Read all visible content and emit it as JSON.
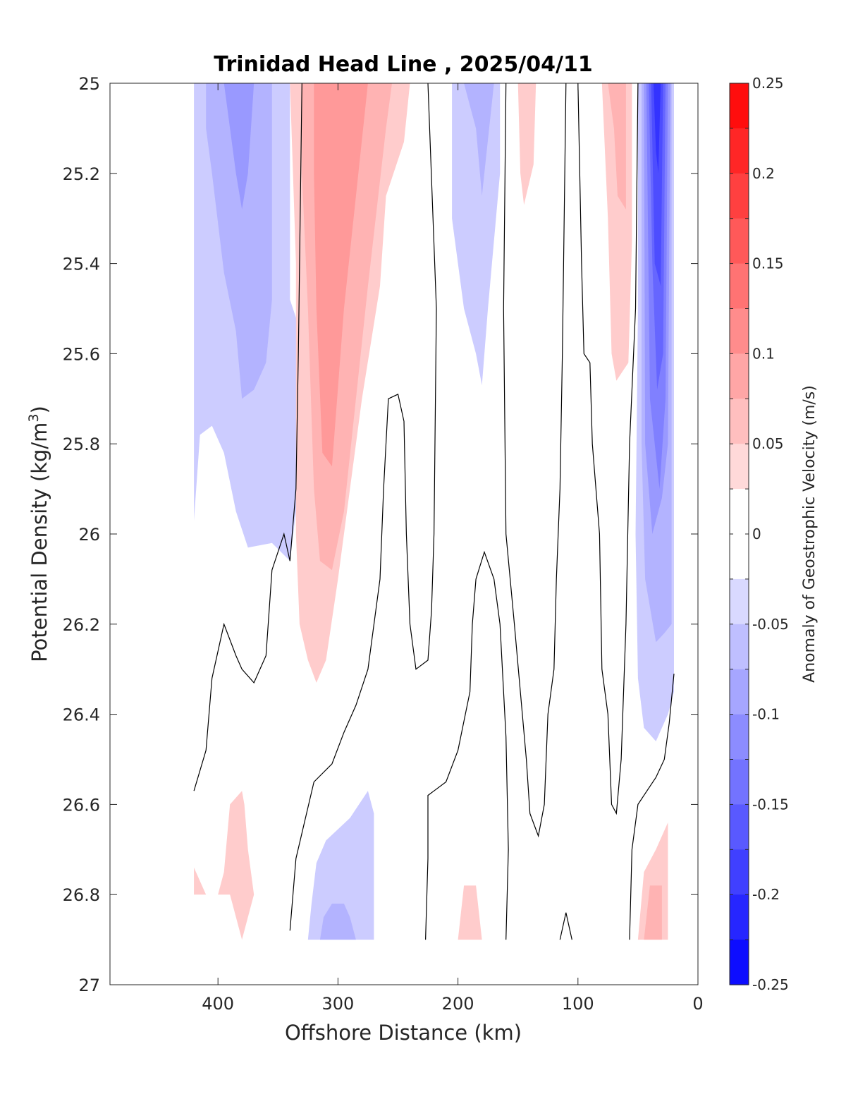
{
  "chart_data": {
    "type": "heatmap",
    "title": "Trinidad Head Line , 2025/04/11",
    "xlabel": "Offshore Distance (km)",
    "ylabel": "Potential Density (kg/m",
    "ylabel_sup": "3",
    "ylabel_close": ")",
    "xlim": [
      490,
      0
    ],
    "ylim": [
      25,
      27
    ],
    "x_reversed": true,
    "y_reversed": true,
    "x_ticks": [
      400,
      300,
      200,
      100,
      0
    ],
    "y_ticks": [
      "25",
      "25.2",
      "25.4",
      "25.6",
      "25.8",
      "26",
      "26.2",
      "26.4",
      "26.6",
      "26.8",
      "27"
    ],
    "grid": false,
    "colorbar": {
      "label": "Anomaly of Geostrophic Velocity (m/s)",
      "range": [
        -0.25,
        0.25
      ],
      "step": 0.025,
      "ticks": [
        "0.25",
        "0.2",
        "0.15",
        "0.1",
        "0.05",
        "0",
        "-0.05",
        "-0.1",
        "-0.15",
        "-0.2",
        "-0.25"
      ],
      "negative_color": "#0000ff",
      "positive_color": "#ff0000"
    },
    "filled_regions": [
      {
        "level": -0.05,
        "points": [
          [
            420,
            25
          ],
          [
            340,
            25
          ],
          [
            340,
            25.48
          ],
          [
            335,
            25.52
          ],
          [
            325,
            25.7
          ],
          [
            325,
            25.8
          ],
          [
            335,
            25.95
          ],
          [
            340,
            26.06
          ],
          [
            355,
            26.02
          ],
          [
            375,
            26.03
          ],
          [
            385,
            25.95
          ],
          [
            395,
            25.82
          ],
          [
            405,
            25.76
          ],
          [
            415,
            25.78
          ],
          [
            420,
            25.97
          ]
        ]
      },
      {
        "level": -0.075,
        "points": [
          [
            410,
            25
          ],
          [
            355,
            25
          ],
          [
            355,
            25.48
          ],
          [
            360,
            25.62
          ],
          [
            370,
            25.68
          ],
          [
            380,
            25.7
          ],
          [
            385,
            25.55
          ],
          [
            395,
            25.42
          ],
          [
            405,
            25.2
          ],
          [
            410,
            25.1
          ]
        ]
      },
      {
        "level": -0.1,
        "points": [
          [
            395,
            25
          ],
          [
            370,
            25
          ],
          [
            375,
            25.2
          ],
          [
            380,
            25.28
          ],
          [
            385,
            25.2
          ],
          [
            390,
            25.1
          ]
        ]
      },
      {
        "level": -0.05,
        "points": [
          [
            205,
            25
          ],
          [
            165,
            25
          ],
          [
            165,
            25.2
          ],
          [
            175,
            25.5
          ],
          [
            180,
            25.67
          ],
          [
            185,
            25.6
          ],
          [
            195,
            25.5
          ],
          [
            205,
            25.3
          ]
        ]
      },
      {
        "level": -0.075,
        "points": [
          [
            195,
            25
          ],
          [
            170,
            25
          ],
          [
            178,
            25.2
          ],
          [
            180,
            25.25
          ],
          [
            185,
            25.1
          ],
          [
            190,
            25.05
          ]
        ]
      },
      {
        "level": -0.05,
        "points": [
          [
            50,
            25
          ],
          [
            20,
            25
          ],
          [
            20,
            26.35
          ],
          [
            25,
            26.4
          ],
          [
            35,
            26.46
          ],
          [
            45,
            26.43
          ],
          [
            50,
            26.32
          ],
          [
            52,
            26.0
          ],
          [
            50,
            25.5
          ]
        ]
      },
      {
        "level": -0.075,
        "points": [
          [
            47,
            25
          ],
          [
            22,
            25
          ],
          [
            22,
            26.2
          ],
          [
            28,
            26.22
          ],
          [
            35,
            26.24
          ],
          [
            44,
            26.1
          ],
          [
            47,
            25.8
          ]
        ]
      },
      {
        "level": -0.1,
        "points": [
          [
            45,
            25
          ],
          [
            23,
            25
          ],
          [
            25,
            25.8
          ],
          [
            30,
            25.92
          ],
          [
            38,
            26.0
          ],
          [
            44,
            25.8
          ]
        ]
      },
      {
        "level": -0.125,
        "points": [
          [
            43,
            25
          ],
          [
            25,
            25
          ],
          [
            27,
            25.7
          ],
          [
            32,
            25.9
          ],
          [
            40,
            25.7
          ]
        ]
      },
      {
        "level": -0.15,
        "points": [
          [
            41,
            25
          ],
          [
            27,
            25
          ],
          [
            29,
            25.6
          ],
          [
            34,
            25.68
          ],
          [
            38,
            25.4
          ]
        ]
      },
      {
        "level": -0.175,
        "points": [
          [
            39,
            25
          ],
          [
            29,
            25
          ],
          [
            31,
            25.45
          ],
          [
            36,
            25.4
          ]
        ]
      },
      {
        "level": -0.2,
        "points": [
          [
            37,
            25
          ],
          [
            31,
            25
          ],
          [
            33,
            25.2
          ],
          [
            35,
            25.15
          ]
        ]
      },
      {
        "level": -0.05,
        "points": [
          [
            325,
            26.9
          ],
          [
            270,
            26.9
          ],
          [
            270,
            26.62
          ],
          [
            275,
            26.57
          ],
          [
            290,
            26.63
          ],
          [
            310,
            26.68
          ],
          [
            318,
            26.73
          ],
          [
            322,
            26.82
          ]
        ]
      },
      {
        "level": -0.075,
        "points": [
          [
            315,
            26.9
          ],
          [
            285,
            26.9
          ],
          [
            290,
            26.85
          ],
          [
            295,
            26.82
          ],
          [
            305,
            26.82
          ],
          [
            312,
            26.85
          ]
        ]
      },
      {
        "level": 0.05,
        "points": [
          [
            340,
            25
          ],
          [
            240,
            25
          ],
          [
            245,
            25.13
          ],
          [
            260,
            25.25
          ],
          [
            265,
            25.45
          ],
          [
            280,
            25.7
          ],
          [
            290,
            25.9
          ],
          [
            300,
            26.1
          ],
          [
            310,
            26.28
          ],
          [
            318,
            26.33
          ],
          [
            325,
            26.28
          ],
          [
            332,
            26.2
          ],
          [
            335,
            26.0
          ],
          [
            335,
            25.4
          ]
        ]
      },
      {
        "level": 0.075,
        "points": [
          [
            330,
            25
          ],
          [
            255,
            25
          ],
          [
            260,
            25.1
          ],
          [
            275,
            25.45
          ],
          [
            285,
            25.7
          ],
          [
            295,
            25.95
          ],
          [
            305,
            26.08
          ],
          [
            315,
            26.06
          ],
          [
            320,
            25.9
          ],
          [
            325,
            25.5
          ],
          [
            330,
            25.2
          ]
        ]
      },
      {
        "level": 0.1,
        "points": [
          [
            320,
            25
          ],
          [
            275,
            25
          ],
          [
            285,
            25.25
          ],
          [
            295,
            25.5
          ],
          [
            305,
            25.85
          ],
          [
            313,
            25.82
          ],
          [
            318,
            25.5
          ],
          [
            320,
            25.2
          ]
        ]
      },
      {
        "level": 0.05,
        "points": [
          [
            150,
            25
          ],
          [
            135,
            25
          ],
          [
            137,
            25.18
          ],
          [
            145,
            25.27
          ],
          [
            148,
            25.2
          ]
        ]
      },
      {
        "level": 0.05,
        "points": [
          [
            80,
            25
          ],
          [
            55,
            25
          ],
          [
            55,
            25.35
          ],
          [
            58,
            25.62
          ],
          [
            68,
            25.66
          ],
          [
            72,
            25.6
          ],
          [
            75,
            25.3
          ]
        ]
      },
      {
        "level": 0.075,
        "points": [
          [
            75,
            25
          ],
          [
            60,
            25
          ],
          [
            60,
            25.28
          ],
          [
            67,
            25.25
          ],
          [
            70,
            25.1
          ]
        ]
      },
      {
        "level": 0.05,
        "points": [
          [
            420,
            26.74
          ],
          [
            410,
            26.8
          ],
          [
            420,
            26.8
          ]
        ]
      },
      {
        "level": 0.05,
        "points": [
          [
            390,
            26.8
          ],
          [
            380,
            26.9
          ],
          [
            370,
            26.8
          ],
          [
            375,
            26.7
          ],
          [
            378,
            26.6
          ],
          [
            380,
            26.57
          ],
          [
            390,
            26.6
          ],
          [
            395,
            26.75
          ],
          [
            400,
            26.8
          ]
        ]
      },
      {
        "level": 0.05,
        "points": [
          [
            200,
            26.9
          ],
          [
            180,
            26.9
          ],
          [
            185,
            26.78
          ],
          [
            195,
            26.78
          ]
        ]
      },
      {
        "level": 0.05,
        "points": [
          [
            50,
            26.9
          ],
          [
            25,
            26.9
          ],
          [
            25,
            26.64
          ],
          [
            35,
            26.7
          ],
          [
            45,
            26.75
          ]
        ]
      },
      {
        "level": 0.075,
        "points": [
          [
            45,
            26.9
          ],
          [
            30,
            26.9
          ],
          [
            30,
            26.78
          ],
          [
            40,
            26.78
          ]
        ]
      }
    ],
    "contour_lines": [
      [
        [
          420,
          26.57
        ],
        [
          410,
          26.48
        ],
        [
          405,
          26.32
        ],
        [
          395,
          26.2
        ],
        [
          385,
          26.27
        ],
        [
          380,
          26.3
        ],
        [
          370,
          26.33
        ],
        [
          360,
          26.27
        ],
        [
          355,
          26.08
        ],
        [
          345,
          26.0
        ],
        [
          340,
          26.06
        ],
        [
          335,
          25.9
        ],
        [
          333,
          25.6
        ],
        [
          330,
          25.0
        ]
      ],
      [
        [
          340,
          26.88
        ],
        [
          335,
          26.72
        ],
        [
          320,
          26.55
        ],
        [
          305,
          26.51
        ],
        [
          295,
          26.44
        ],
        [
          285,
          26.38
        ],
        [
          275,
          26.3
        ],
        [
          265,
          26.1
        ],
        [
          262,
          25.9
        ],
        [
          258,
          25.7
        ],
        [
          250,
          25.69
        ],
        [
          245,
          25.75
        ],
        [
          243,
          26.0
        ],
        [
          240,
          26.2
        ],
        [
          235,
          26.3
        ],
        [
          225,
          26.28
        ],
        [
          222,
          26.17
        ],
        [
          220,
          26.0
        ],
        [
          218,
          25.5
        ],
        [
          225,
          25.0
        ]
      ],
      [
        [
          227,
          26.9
        ],
        [
          225,
          26.72
        ],
        [
          225,
          26.58
        ],
        [
          220,
          26.57
        ],
        [
          210,
          26.55
        ],
        [
          200,
          26.48
        ],
        [
          190,
          26.35
        ],
        [
          188,
          26.2
        ],
        [
          185,
          26.1
        ],
        [
          178,
          26.04
        ],
        [
          170,
          26.1
        ],
        [
          165,
          26.2
        ],
        [
          160,
          26.45
        ],
        [
          158,
          26.7
        ],
        [
          160,
          26.9
        ]
      ],
      [
        [
          160,
          25.0
        ],
        [
          162,
          25.5
        ],
        [
          160,
          26.0
        ],
        [
          153,
          26.2
        ],
        [
          148,
          26.35
        ],
        [
          143,
          26.5
        ],
        [
          140,
          26.62
        ],
        [
          133,
          26.67
        ],
        [
          128,
          26.6
        ],
        [
          125,
          26.4
        ],
        [
          120,
          26.3
        ],
        [
          118,
          26.1
        ],
        [
          115,
          25.9
        ],
        [
          113,
          25.6
        ],
        [
          110,
          25.0
        ]
      ],
      [
        [
          115,
          26.9
        ],
        [
          110,
          26.84
        ],
        [
          105,
          26.9
        ]
      ],
      [
        [
          100,
          25.0
        ],
        [
          97,
          25.4
        ],
        [
          95,
          25.6
        ],
        [
          90,
          25.62
        ],
        [
          88,
          25.8
        ],
        [
          82,
          26.0
        ],
        [
          80,
          26.3
        ],
        [
          75,
          26.4
        ],
        [
          72,
          26.6
        ],
        [
          68,
          26.62
        ],
        [
          64,
          26.5
        ],
        [
          60,
          26.2
        ],
        [
          57,
          25.8
        ],
        [
          52,
          25.5
        ],
        [
          50,
          25.0
        ]
      ],
      [
        [
          57,
          26.9
        ],
        [
          55,
          26.7
        ],
        [
          50,
          26.6
        ],
        [
          45,
          26.58
        ],
        [
          40,
          26.56
        ],
        [
          35,
          26.54
        ],
        [
          28,
          26.5
        ],
        [
          24,
          26.42
        ],
        [
          20,
          26.31
        ]
      ]
    ]
  }
}
